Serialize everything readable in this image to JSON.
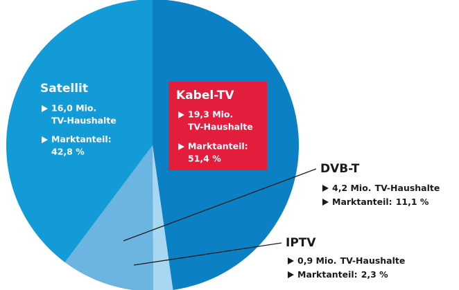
{
  "chart_data": {
    "type": "pie",
    "categories": [
      "Kabel-TV",
      "IPTV",
      "DVB-T",
      "Satellit"
    ],
    "values": [
      51.4,
      2.3,
      11.1,
      42.8
    ],
    "value_labels": [
      "51,4 %",
      "2,3 %",
      "11,1 %",
      "42,8 %"
    ],
    "colors": [
      "#0b80c5",
      "#a8d8f1",
      "#6cb5e1",
      "#139bd7"
    ],
    "households": [
      "19,3 Mio.",
      "0,9 Mio.",
      "4,2 Mio.",
      "16,0 Mio."
    ],
    "households_unit": "TV-Haushalte",
    "share_label": "Marktanteil:"
  }
}
